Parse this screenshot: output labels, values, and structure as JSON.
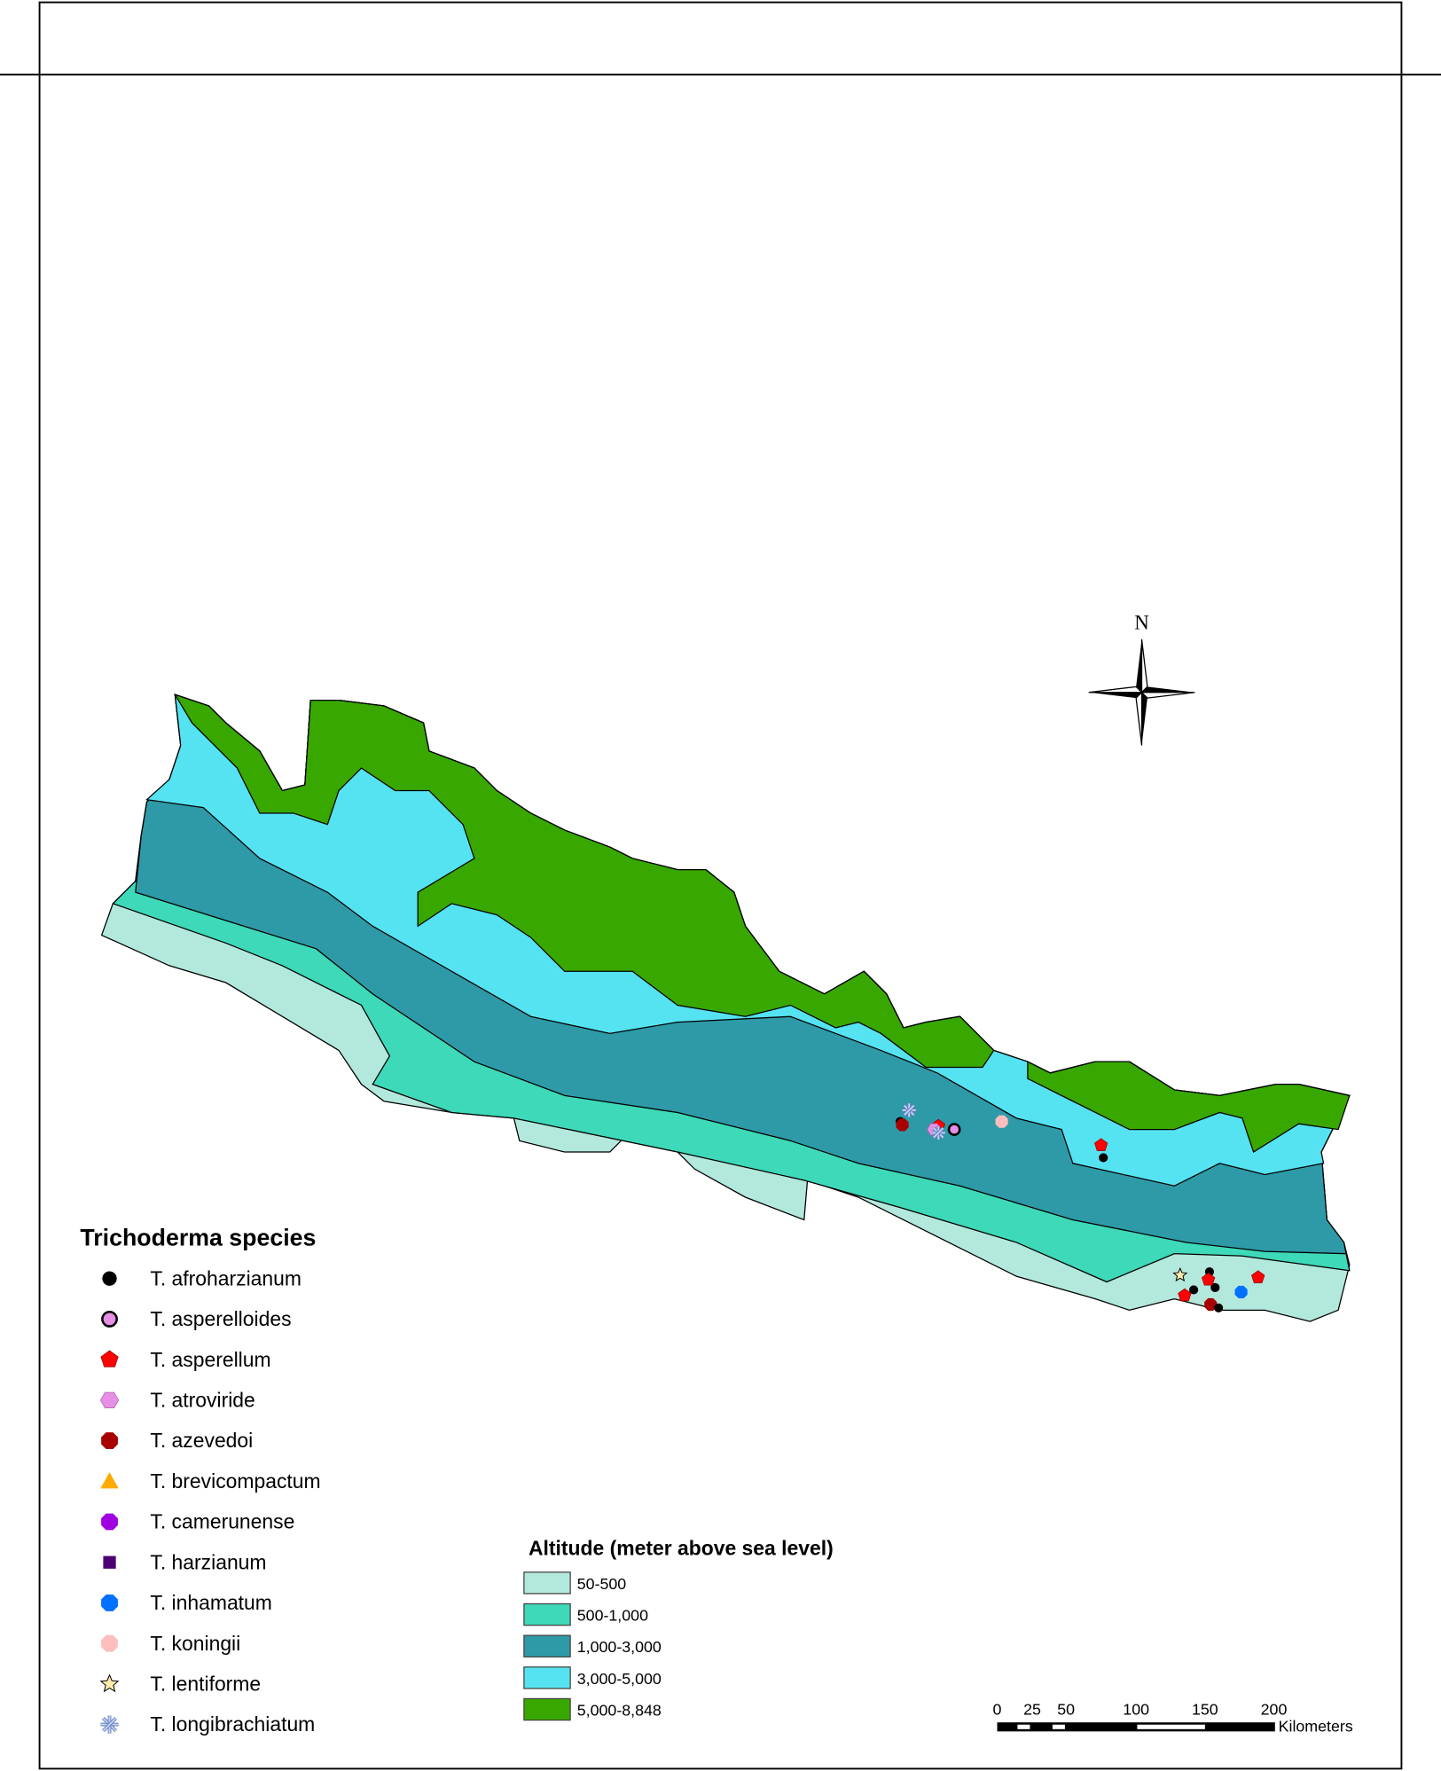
{
  "north_label": "N",
  "species_legend": {
    "title": "Trichoderma species",
    "items": [
      {
        "label": "T. afroharzianum",
        "symbol": "circle",
        "color": "#000000"
      },
      {
        "label": "T. asperelloides",
        "symbol": "circle-outlined",
        "color": "#e58fe5"
      },
      {
        "label": "T. asperellum",
        "symbol": "pentagon",
        "color": "#ff0000"
      },
      {
        "label": "T. atroviride",
        "symbol": "hexagon",
        "color": "#e58fe5"
      },
      {
        "label": "T. azevedoi",
        "symbol": "octagon",
        "color": "#a80000"
      },
      {
        "label": "T. brevicompactum",
        "symbol": "triangle",
        "color": "#ffaa00"
      },
      {
        "label": "T. camerunense",
        "symbol": "octagon",
        "color": "#a000e0"
      },
      {
        "label": "T. harzianum",
        "symbol": "square",
        "color": "#4c0073"
      },
      {
        "label": "T. inhamatum",
        "symbol": "octagon",
        "color": "#0070ff"
      },
      {
        "label": "T. koningii",
        "symbol": "octagon",
        "color": "#ffbebe"
      },
      {
        "label": "T. lentiforme",
        "symbol": "star",
        "color": "#ffebaf"
      },
      {
        "label": "T. longibrachiatum",
        "symbol": "asterisk",
        "color": "#bed2ff"
      }
    ]
  },
  "altitude_legend": {
    "title": "Altitude (meter above sea level)",
    "classes": [
      {
        "label": "50-500",
        "color": "#b3e8dd"
      },
      {
        "label": "500-1,000",
        "color": "#3ed9b8"
      },
      {
        "label": "1,000-3,000",
        "color": "#2e9aa8"
      },
      {
        "label": "3,000-5,000",
        "color": "#55e3f2"
      },
      {
        "label": "5,000-8,848",
        "color": "#38a800"
      }
    ]
  },
  "scale_bar": {
    "ticks": [
      "0",
      "25",
      "50",
      "100",
      "150",
      "200"
    ],
    "unit": "Kilometers"
  }
}
